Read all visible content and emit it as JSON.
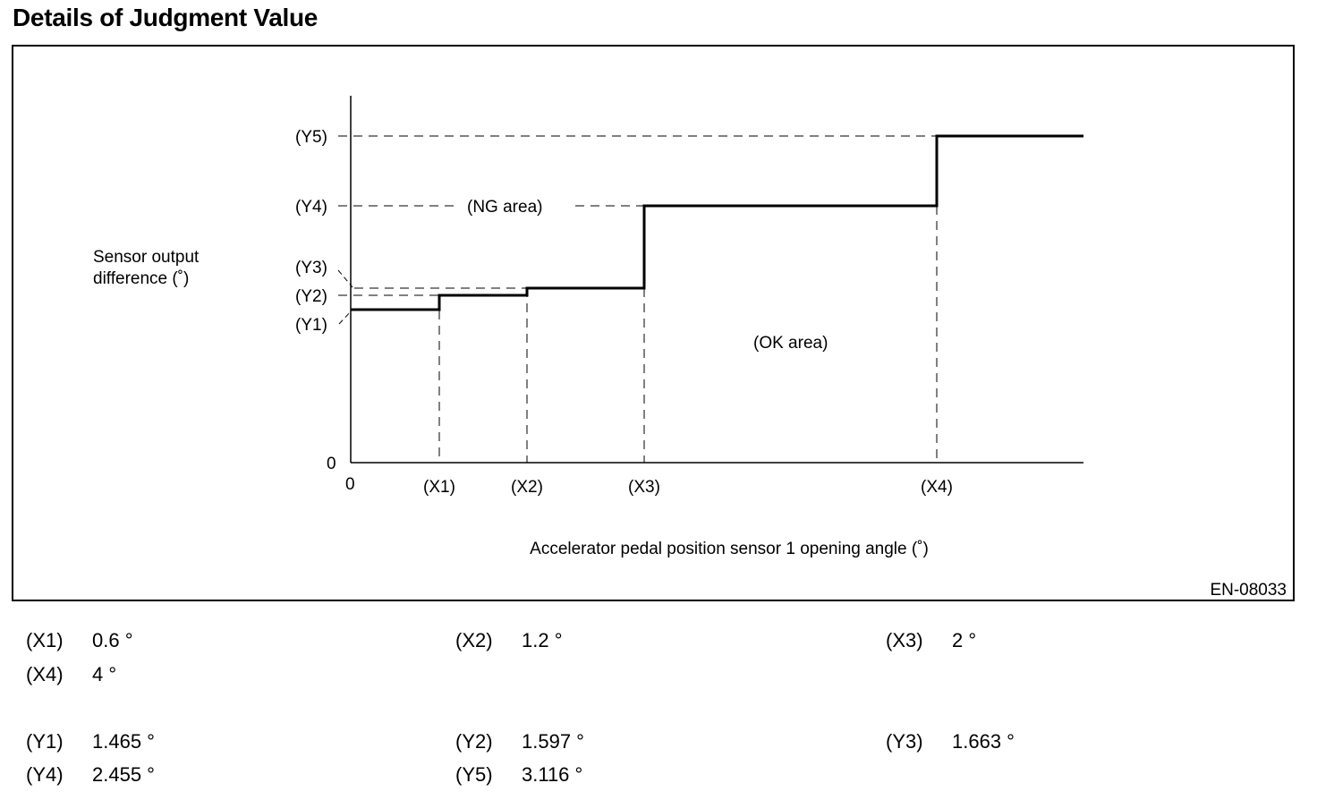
{
  "title": "Details of Judgment Value",
  "figure_code": "EN-08033",
  "diagram": {
    "y_axis_label_line1": "Sensor output",
    "y_axis_label_line2": "difference (˚)",
    "x_axis_label": "Accelerator pedal position sensor 1 opening angle (˚)",
    "origin_x_label": "0",
    "origin_y_label": "0",
    "y_ticks": [
      "(Y1)",
      "(Y2)",
      "(Y3)",
      "(Y4)",
      "(Y5)"
    ],
    "x_ticks": [
      "(X1)",
      "(X2)",
      "(X3)",
      "(X4)"
    ],
    "ng_area_label": "(NG area)",
    "ok_area_label": "(OK area)"
  },
  "values": {
    "x": [
      {
        "label": "(X1)",
        "value": "0.6 °"
      },
      {
        "label": "(X2)",
        "value": "1.2 °"
      },
      {
        "label": "(X3)",
        "value": "2 °"
      },
      {
        "label": "(X4)",
        "value": "4 °"
      }
    ],
    "y": [
      {
        "label": "(Y1)",
        "value": "1.465 °"
      },
      {
        "label": "(Y2)",
        "value": "1.597 °"
      },
      {
        "label": "(Y3)",
        "value": "1.663 °"
      },
      {
        "label": "(Y4)",
        "value": "2.455 °"
      },
      {
        "label": "(Y5)",
        "value": "3.116 °"
      }
    ]
  }
}
